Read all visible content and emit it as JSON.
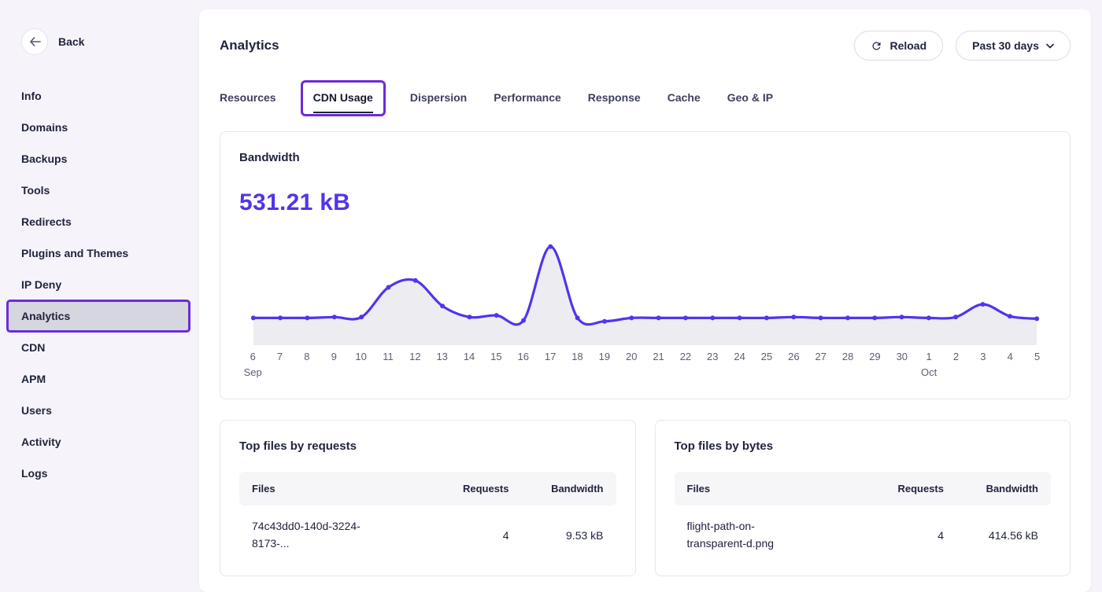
{
  "back": {
    "label": "Back"
  },
  "sidebar": {
    "items": [
      {
        "id": "info",
        "label": "Info"
      },
      {
        "id": "domains",
        "label": "Domains"
      },
      {
        "id": "backups",
        "label": "Backups"
      },
      {
        "id": "tools",
        "label": "Tools"
      },
      {
        "id": "redirects",
        "label": "Redirects"
      },
      {
        "id": "plugins-and-themes",
        "label": "Plugins and Themes"
      },
      {
        "id": "ip-deny",
        "label": "IP Deny"
      },
      {
        "id": "analytics",
        "label": "Analytics",
        "selected": true,
        "annotated": true
      },
      {
        "id": "cdn",
        "label": "CDN"
      },
      {
        "id": "apm",
        "label": "APM"
      },
      {
        "id": "users",
        "label": "Users"
      },
      {
        "id": "activity",
        "label": "Activity"
      },
      {
        "id": "logs",
        "label": "Logs"
      }
    ]
  },
  "header": {
    "title": "Analytics",
    "reload_label": "Reload",
    "range_label": "Past 30 days"
  },
  "tabs": {
    "items": [
      {
        "id": "resources",
        "label": "Resources"
      },
      {
        "id": "cdn-usage",
        "label": "CDN Usage",
        "active": true,
        "annotated": true
      },
      {
        "id": "dispersion",
        "label": "Dispersion"
      },
      {
        "id": "performance",
        "label": "Performance"
      },
      {
        "id": "response",
        "label": "Response"
      },
      {
        "id": "cache",
        "label": "Cache"
      },
      {
        "id": "geo-ip",
        "label": "Geo & IP"
      }
    ]
  },
  "bandwidth": {
    "title": "Bandwidth",
    "total": "531.21 kB"
  },
  "chart_data": {
    "type": "line",
    "title": "Bandwidth",
    "total_label": "531.21 kB",
    "unit": "kB",
    "x": [
      "6",
      "7",
      "8",
      "9",
      "10",
      "11",
      "12",
      "13",
      "14",
      "15",
      "16",
      "17",
      "18",
      "19",
      "20",
      "21",
      "22",
      "23",
      "24",
      "25",
      "26",
      "27",
      "28",
      "29",
      "30",
      "1",
      "2",
      "3",
      "4",
      "5"
    ],
    "month_markers": [
      {
        "index": 0,
        "label": "Sep"
      },
      {
        "index": 25,
        "label": "Oct"
      }
    ],
    "values": [
      8,
      8,
      8,
      9,
      9,
      44,
      52,
      22,
      9,
      11,
      5,
      92,
      8,
      4,
      8,
      8,
      8,
      8,
      8,
      8,
      9,
      8,
      8,
      8,
      9,
      8,
      9,
      24,
      10,
      7
    ],
    "ylim": [
      0,
      100
    ],
    "grid": false,
    "legend": "none",
    "line_color": "#5333ed",
    "area_color": "#ededf1"
  },
  "top_files_requests": {
    "title": "Top files by requests",
    "columns": [
      "Files",
      "Requests",
      "Bandwidth"
    ],
    "rows": [
      {
        "file": "74c43dd0-140d-3224-8173-...",
        "requests": "4",
        "bandwidth": "9.53 kB"
      }
    ]
  },
  "top_files_bytes": {
    "title": "Top files by bytes",
    "columns": [
      "Files",
      "Requests",
      "Bandwidth"
    ],
    "rows": [
      {
        "file": "flight-path-on-transparent-d.png",
        "requests": "4",
        "bandwidth": "414.56 kB"
      }
    ]
  },
  "colors": {
    "accent": "#5333ed",
    "annotation": "#6c2bd9",
    "selected_item_bg": "#d6d6de"
  }
}
